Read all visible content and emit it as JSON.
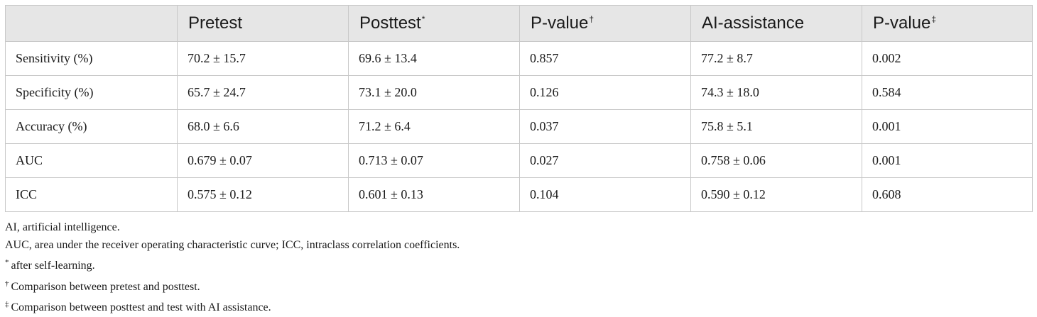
{
  "table": {
    "headers": [
      {
        "label": "",
        "mark": ""
      },
      {
        "label": "Pretest",
        "mark": ""
      },
      {
        "label": "Posttest",
        "mark": "*"
      },
      {
        "label": "P-value",
        "mark": "†"
      },
      {
        "label": "AI-assistance",
        "mark": ""
      },
      {
        "label": "P-value",
        "mark": "‡"
      }
    ],
    "rows": [
      [
        "Sensitivity (%)",
        "70.2 ± 15.7",
        "69.6 ± 13.4",
        "0.857",
        "77.2 ± 8.7",
        "0.002"
      ],
      [
        "Specificity (%)",
        "65.7 ± 24.7",
        "73.1 ± 20.0",
        "0.126",
        "74.3 ± 18.0",
        "0.584"
      ],
      [
        "Accuracy (%)",
        "68.0 ± 6.6",
        "71.2 ± 6.4",
        "0.037",
        "75.8 ± 5.1",
        "0.001"
      ],
      [
        "AUC",
        "0.679 ± 0.07",
        "0.713 ± 0.07",
        "0.027",
        "0.758 ± 0.06",
        "0.001"
      ],
      [
        "ICC",
        "0.575 ± 0.12",
        "0.601 ± 0.13",
        "0.104",
        "0.590 ± 0.12",
        "0.608"
      ]
    ]
  },
  "notes": [
    {
      "mark": "",
      "text": "AI, artificial intelligence."
    },
    {
      "mark": "",
      "text": "AUC, area under the receiver operating characteristic curve; ICC, intraclass correlation coefficients."
    },
    {
      "mark": "*",
      "text": "after self-learning."
    },
    {
      "mark": "†",
      "text": "Comparison between pretest and posttest."
    },
    {
      "mark": "‡",
      "text": "Comparison between posttest and test with AI assistance."
    }
  ],
  "colors": {
    "header_background": "#e6e6e6",
    "border": "#c8c8c8",
    "text": "#1a1a1a"
  }
}
